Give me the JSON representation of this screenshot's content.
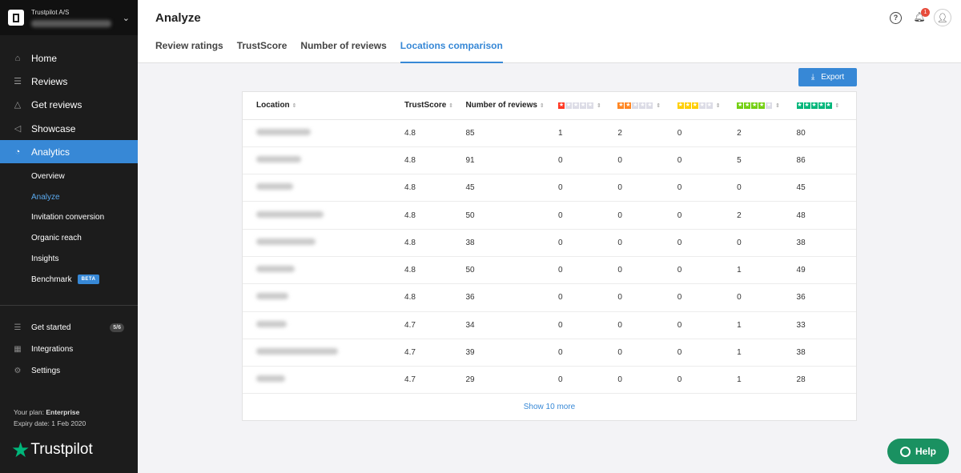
{
  "account": {
    "name": "Trustpilot A/S"
  },
  "sidebar": {
    "items": [
      {
        "label": "Home",
        "icon": "home-icon",
        "glyph": "⌂"
      },
      {
        "label": "Reviews",
        "icon": "reviews-icon",
        "glyph": "☰"
      },
      {
        "label": "Get reviews",
        "icon": "get-reviews-icon",
        "glyph": "△"
      },
      {
        "label": "Showcase",
        "icon": "showcase-icon",
        "glyph": "◁"
      },
      {
        "label": "Analytics",
        "icon": "analytics-icon",
        "glyph": "◔"
      }
    ],
    "subitems": [
      "Overview",
      "Analyze",
      "Invitation conversion",
      "Organic reach",
      "Insights",
      "Benchmark"
    ],
    "beta_label": "BETA",
    "bottom": [
      {
        "label": "Get started",
        "badge": "5/6",
        "icon": "list-icon",
        "glyph": "☰"
      },
      {
        "label": "Integrations",
        "icon": "integrations-icon",
        "glyph": "▦"
      },
      {
        "label": "Settings",
        "icon": "gear-icon",
        "glyph": "⚙"
      }
    ],
    "plan_label": "Your plan:",
    "plan_value": "Enterprise",
    "expiry": "Expiry date: 1 Feb 2020",
    "logo_text": "Trustpilot"
  },
  "header": {
    "title": "Analyze",
    "notification_count": "1",
    "tabs": [
      "Review ratings",
      "TrustScore",
      "Number of reviews",
      "Locations comparison"
    ]
  },
  "export_label": "Export",
  "table": {
    "headers": {
      "location": "Location",
      "trustscore": "TrustScore",
      "reviews": "Number of reviews"
    },
    "star_colors": [
      "#ff3722",
      "#ff8622",
      "#ffce00",
      "#73cf11",
      "#00b67a"
    ],
    "rows": [
      {
        "ts": "4.8",
        "n": "85",
        "s": [
          "1",
          "2",
          "0",
          "2",
          "80"
        ]
      },
      {
        "ts": "4.8",
        "n": "91",
        "s": [
          "0",
          "0",
          "0",
          "5",
          "86"
        ]
      },
      {
        "ts": "4.8",
        "n": "45",
        "s": [
          "0",
          "0",
          "0",
          "0",
          "45"
        ]
      },
      {
        "ts": "4.8",
        "n": "50",
        "s": [
          "0",
          "0",
          "0",
          "2",
          "48"
        ]
      },
      {
        "ts": "4.8",
        "n": "38",
        "s": [
          "0",
          "0",
          "0",
          "0",
          "38"
        ]
      },
      {
        "ts": "4.8",
        "n": "50",
        "s": [
          "0",
          "0",
          "0",
          "1",
          "49"
        ]
      },
      {
        "ts": "4.8",
        "n": "36",
        "s": [
          "0",
          "0",
          "0",
          "0",
          "36"
        ]
      },
      {
        "ts": "4.7",
        "n": "34",
        "s": [
          "0",
          "0",
          "0",
          "1",
          "33"
        ]
      },
      {
        "ts": "4.7",
        "n": "39",
        "s": [
          "0",
          "0",
          "0",
          "1",
          "38"
        ]
      },
      {
        "ts": "4.7",
        "n": "29",
        "s": [
          "0",
          "0",
          "0",
          "1",
          "28"
        ]
      }
    ],
    "show_more": "Show 10 more"
  },
  "help_label": "Help"
}
